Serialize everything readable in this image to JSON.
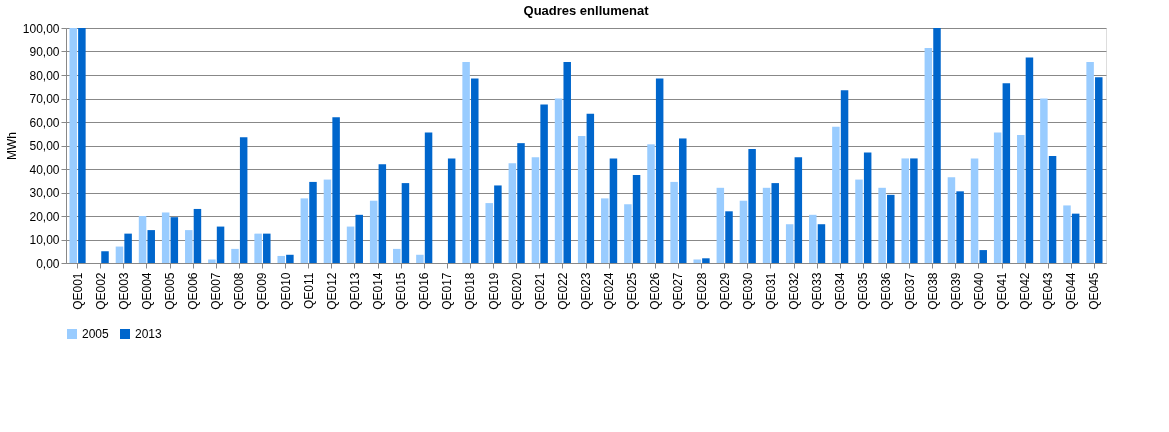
{
  "chart_data": {
    "type": "bar",
    "title": "Quadres enllumenat",
    "ylabel": "MWh",
    "categories": [
      "QE001",
      "QE002",
      "QE003",
      "QE004",
      "QE005",
      "QE006",
      "QE007",
      "QE008",
      "QE009",
      "QE010",
      "QE011",
      "QE012",
      "QE013",
      "QE014",
      "QE015",
      "QE016",
      "QE017",
      "QE018",
      "QE019",
      "QE020",
      "QE021",
      "QE022",
      "QE023",
      "QE024",
      "QE025",
      "QE026",
      "QE027",
      "QE028",
      "QE029",
      "QE030",
      "QE031",
      "QE032",
      "QE033",
      "QE034",
      "QE035",
      "QE036",
      "QE037",
      "QE038",
      "QE039",
      "QE040",
      "QE041",
      "QE042",
      "QE043",
      "QE044",
      "QE045"
    ],
    "series": [
      {
        "name": "2005",
        "color": "#99ccff",
        "values": [
          100,
          0,
          7,
          20,
          21.5,
          14,
          1.5,
          6,
          12.5,
          3,
          27.5,
          35.5,
          15.5,
          26.5,
          6,
          3.5,
          0,
          85.5,
          25.5,
          42.5,
          45,
          70,
          54,
          27.5,
          25,
          50.5,
          34.5,
          1.5,
          32,
          26.5,
          32,
          16.5,
          20.5,
          58,
          35.5,
          32,
          44.5,
          91.5,
          36.5,
          44.5,
          55.5,
          54.5,
          70,
          24.5,
          85.5
        ]
      },
      {
        "name": "2013",
        "color": "#0066cc",
        "values": [
          100,
          5,
          12.5,
          14,
          19.5,
          23,
          15.5,
          53.5,
          12.5,
          3.5,
          34.5,
          62,
          20.5,
          42,
          34,
          55.5,
          44.5,
          78.5,
          33,
          51,
          67.5,
          85.5,
          63.5,
          44.5,
          37.5,
          78.5,
          53,
          2,
          22,
          48.5,
          34,
          45,
          16.5,
          73.5,
          47,
          29,
          44.5,
          100,
          30.5,
          5.5,
          76.5,
          87.5,
          45.5,
          21,
          79
        ]
      }
    ],
    "ylim": [
      0,
      100
    ],
    "yticks": [
      {
        "value": 0,
        "label": "0,00"
      },
      {
        "value": 10,
        "label": "10,00"
      },
      {
        "value": 20,
        "label": "20,00"
      },
      {
        "value": 30,
        "label": "30,00"
      },
      {
        "value": 40,
        "label": "40,00"
      },
      {
        "value": 50,
        "label": "50,00"
      },
      {
        "value": 60,
        "label": "60,00"
      },
      {
        "value": 70,
        "label": "70,00"
      },
      {
        "value": 80,
        "label": "80,00"
      },
      {
        "value": 90,
        "label": "90,00"
      },
      {
        "value": 100,
        "label": "100,00"
      }
    ],
    "grid": "y",
    "legend": "bottom"
  }
}
